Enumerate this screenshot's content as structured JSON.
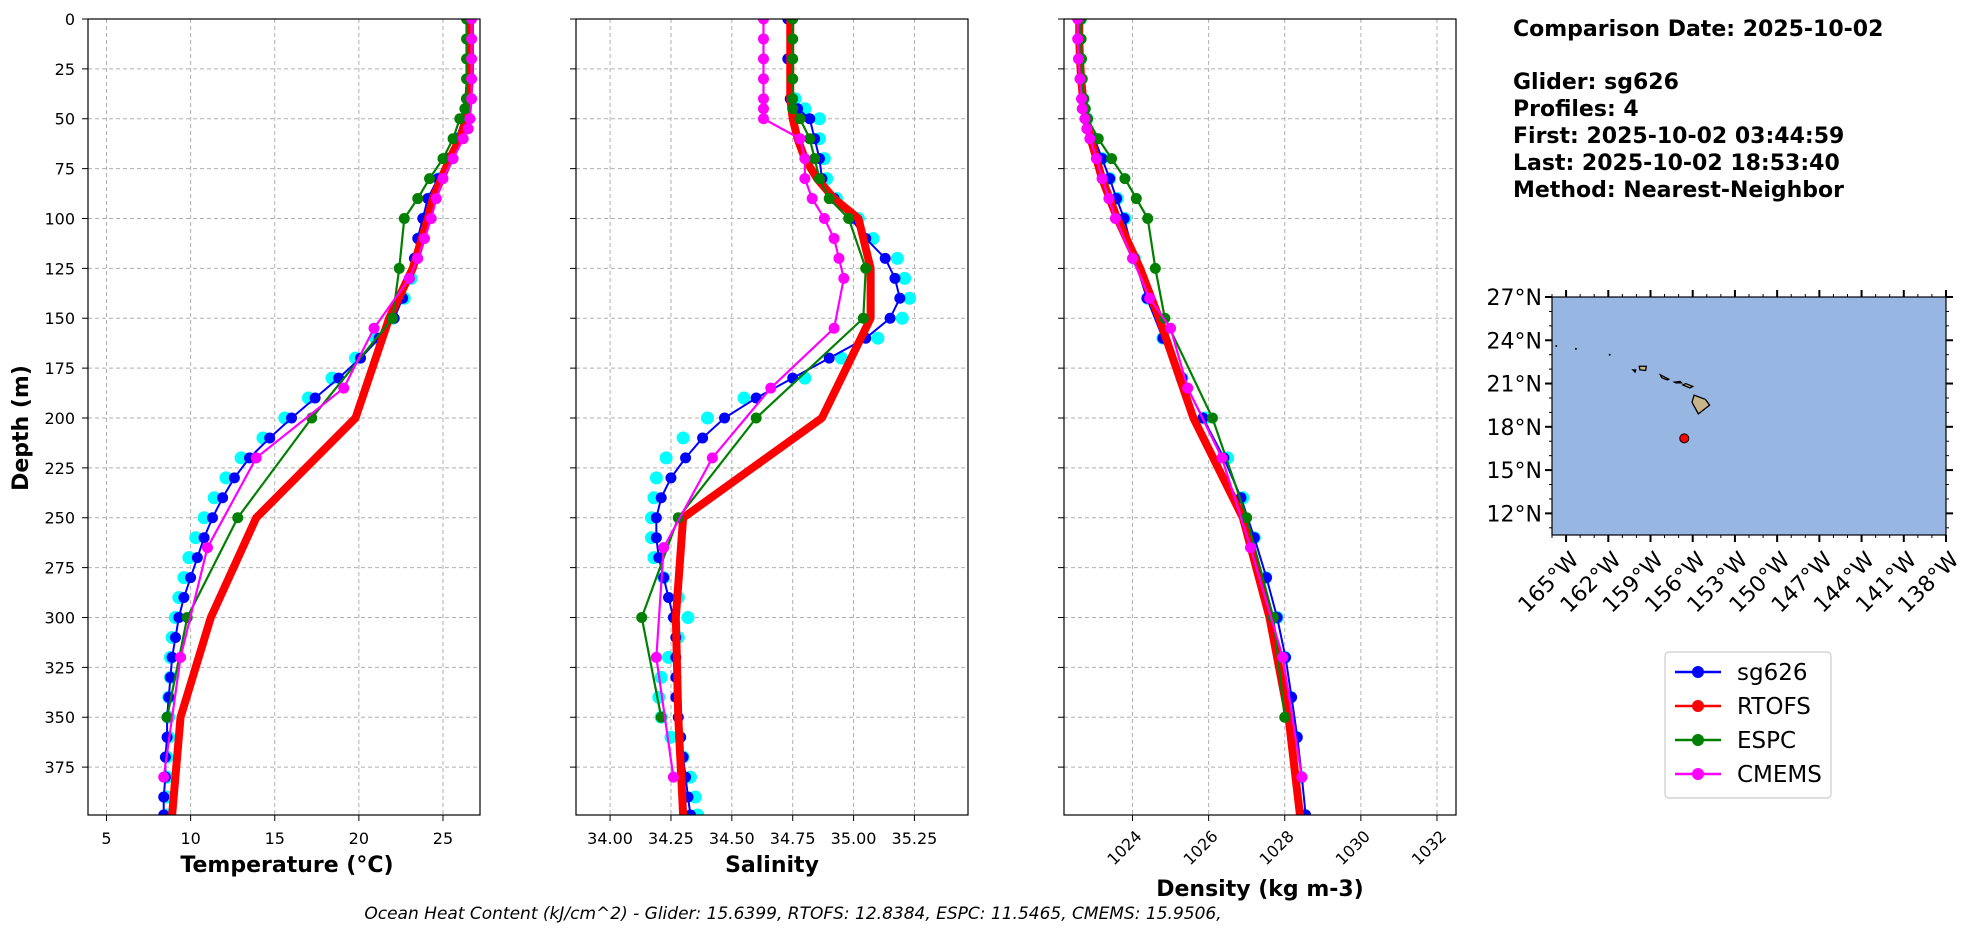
{
  "info": {
    "comparison_date": "Comparison Date: 2025-10-02",
    "glider": "Glider: sg626",
    "profiles": "Profiles: 4",
    "first": "First: 2025-10-02 03:44:59",
    "last": "Last: 2025-10-02 18:53:40",
    "method": "Method: Nearest-Neighbor"
  },
  "footer": "Ocean Heat Content (kJ/cm^2) - Glider: 15.6399,  RTOFS: 12.8384,  ESPC: 11.5465,  CMEMS: 15.9506,",
  "legend": [
    {
      "name": "sg626",
      "color": "#0000ff"
    },
    {
      "name": "RTOFS",
      "color": "#ff0000"
    },
    {
      "name": "ESPC",
      "color": "#008000"
    },
    {
      "name": "CMEMS",
      "color": "#ff00ff"
    }
  ],
  "map": {
    "lat_ticks": [
      "27°N",
      "24°N",
      "21°N",
      "18°N",
      "15°N",
      "12°N"
    ],
    "lat_values": [
      27,
      24,
      21,
      18,
      15,
      12
    ],
    "lon_ticks": [
      "165°W",
      "162°W",
      "159°W",
      "156°W",
      "153°W",
      "150°W",
      "147°W",
      "144°W",
      "141°W",
      "138°W"
    ],
    "lon_values": [
      -165,
      -162,
      -159,
      -156,
      -153,
      -150,
      -147,
      -144,
      -141,
      -138
    ],
    "lon_range": [
      -166,
      -138
    ],
    "lat_range": [
      10.5,
      27
    ],
    "ocean_color": "#97b6e1",
    "land_color": "#c8b48a",
    "glider_position": {
      "lon": -156.6,
      "lat": 17.2
    }
  },
  "chart_data": [
    {
      "type": "line",
      "xlabel": "Temperature (°C)",
      "ylabel": "Depth (m)",
      "xlim": [
        3.9,
        27.2
      ],
      "ylim": [
        399,
        0
      ],
      "x_ticks": [
        "5",
        "10",
        "15",
        "20",
        "25"
      ],
      "x_tick_values": [
        5,
        10,
        15,
        20,
        25
      ],
      "y_ticks": [
        "0",
        "25",
        "50",
        "75",
        "100",
        "125",
        "150",
        "175",
        "200",
        "225",
        "250",
        "275",
        "300",
        "325",
        "350",
        "375"
      ],
      "y_tick_values": [
        0,
        25,
        50,
        75,
        100,
        125,
        150,
        175,
        200,
        225,
        250,
        275,
        300,
        325,
        350,
        375
      ],
      "series": [
        {
          "name": "sg626-profiles",
          "color": "#00ffff",
          "depth": [
            0,
            10,
            20,
            30,
            40,
            50,
            60,
            70,
            80,
            90,
            100,
            110,
            120,
            130,
            140,
            150,
            160,
            170,
            180,
            190,
            200,
            210,
            220,
            230,
            240,
            250,
            260,
            270,
            280,
            290,
            300,
            310,
            320,
            330,
            340,
            350,
            360,
            370,
            380,
            390,
            399
          ],
          "values": [
            26.6,
            26.6,
            26.6,
            26.6,
            26.5,
            26.3,
            25.9,
            25.4,
            24.8,
            24.3,
            23.9,
            23.6,
            23.4,
            23.1,
            22.7,
            22.0,
            21.0,
            19.8,
            18.4,
            17.0,
            15.6,
            14.3,
            13.0,
            12.1,
            11.4,
            10.8,
            10.3,
            9.9,
            9.6,
            9.3,
            9.1,
            8.9,
            8.8,
            8.8,
            8.7,
            8.7,
            8.7,
            8.6,
            8.6,
            8.6,
            8.6
          ]
        },
        {
          "name": "sg626",
          "color": "#0000ff",
          "depth": [
            0,
            10,
            20,
            30,
            40,
            50,
            60,
            70,
            80,
            90,
            100,
            110,
            120,
            130,
            140,
            150,
            160,
            170,
            180,
            190,
            200,
            210,
            220,
            230,
            240,
            250,
            260,
            270,
            280,
            290,
            300,
            310,
            320,
            330,
            340,
            350,
            360,
            370,
            380,
            390,
            399
          ],
          "values": [
            26.5,
            26.5,
            26.5,
            26.5,
            26.4,
            26.2,
            25.8,
            25.3,
            24.7,
            24.1,
            23.8,
            23.5,
            23.3,
            23.0,
            22.6,
            22.1,
            21.2,
            20.1,
            18.8,
            17.4,
            16.0,
            14.7,
            13.5,
            12.6,
            11.9,
            11.3,
            10.8,
            10.4,
            10.0,
            9.6,
            9.3,
            9.1,
            8.9,
            8.8,
            8.7,
            8.6,
            8.6,
            8.5,
            8.5,
            8.4,
            8.4
          ]
        },
        {
          "name": "RTOFS",
          "color": "#ff0000",
          "depth": [
            0,
            10,
            20,
            30,
            40,
            50,
            60,
            70,
            80,
            90,
            100,
            125,
            150,
            200,
            250,
            300,
            350,
            399
          ],
          "values": [
            26.6,
            26.6,
            26.6,
            26.6,
            26.5,
            26.4,
            26.0,
            25.4,
            24.9,
            24.4,
            24.1,
            23.2,
            21.8,
            19.8,
            13.9,
            11.2,
            9.4,
            8.9
          ]
        },
        {
          "name": "ESPC",
          "color": "#008000",
          "depth": [
            0,
            10,
            20,
            30,
            40,
            45,
            50,
            60,
            70,
            80,
            90,
            100,
            125,
            150,
            200,
            250,
            300,
            350
          ],
          "values": [
            26.4,
            26.4,
            26.4,
            26.4,
            26.4,
            26.3,
            26.0,
            25.6,
            25.0,
            24.2,
            23.5,
            22.7,
            22.4,
            22.0,
            17.2,
            12.8,
            9.8,
            8.6
          ]
        },
        {
          "name": "CMEMS",
          "color": "#ff00ff",
          "depth": [
            0,
            10,
            20,
            30,
            40,
            50,
            55,
            60,
            70,
            80,
            90,
            100,
            110,
            120,
            130,
            155,
            185,
            220,
            265,
            320,
            380
          ],
          "values": [
            26.7,
            26.7,
            26.7,
            26.7,
            26.7,
            26.6,
            26.5,
            26.2,
            25.6,
            25.0,
            24.6,
            24.3,
            23.9,
            23.5,
            23.0,
            20.9,
            19.1,
            13.9,
            11.0,
            9.4,
            8.4
          ]
        }
      ]
    },
    {
      "type": "line",
      "xlabel": "Salinity",
      "ylabel": "",
      "xlim": [
        33.86,
        35.47
      ],
      "ylim": [
        399,
        0
      ],
      "x_ticks": [
        "34.00",
        "34.25",
        "34.50",
        "34.75",
        "35.00",
        "35.25"
      ],
      "x_tick_values": [
        34.0,
        34.25,
        34.5,
        34.75,
        35.0,
        35.25
      ],
      "series": [
        {
          "name": "sg626-profiles",
          "color": "#00ffff",
          "depth": [
            0,
            20,
            40,
            45,
            50,
            60,
            70,
            80,
            90,
            100,
            110,
            120,
            130,
            140,
            150,
            160,
            170,
            180,
            190,
            200,
            210,
            220,
            230,
            240,
            250,
            260,
            270,
            280,
            290,
            300,
            310,
            320,
            330,
            340,
            350,
            360,
            370,
            380,
            390,
            399
          ],
          "values": [
            34.74,
            34.74,
            34.76,
            34.8,
            34.86,
            34.86,
            34.88,
            34.89,
            34.93,
            35.02,
            35.08,
            35.18,
            35.21,
            35.23,
            35.2,
            35.1,
            34.95,
            34.8,
            34.55,
            34.4,
            34.3,
            34.23,
            34.19,
            34.18,
            34.17,
            34.17,
            34.18,
            34.22,
            34.28,
            34.32,
            34.28,
            34.24,
            34.21,
            34.2,
            34.21,
            34.25,
            34.3,
            34.33,
            34.35,
            34.36
          ]
        },
        {
          "name": "sg626",
          "color": "#0000ff",
          "depth": [
            0,
            20,
            40,
            45,
            50,
            60,
            70,
            80,
            90,
            100,
            110,
            120,
            130,
            140,
            150,
            160,
            170,
            180,
            190,
            200,
            210,
            220,
            230,
            240,
            250,
            260,
            270,
            280,
            290,
            300,
            310,
            320,
            330,
            340,
            350,
            360,
            370,
            380,
            390,
            399
          ],
          "values": [
            34.73,
            34.73,
            34.74,
            34.77,
            34.82,
            34.84,
            34.86,
            34.87,
            34.92,
            34.99,
            35.05,
            35.13,
            35.17,
            35.19,
            35.15,
            35.05,
            34.9,
            34.75,
            34.6,
            34.47,
            34.38,
            34.31,
            34.25,
            34.21,
            34.19,
            34.19,
            34.2,
            34.22,
            34.24,
            34.26,
            34.27,
            34.27,
            34.27,
            34.27,
            34.28,
            34.29,
            34.3,
            34.31,
            34.32,
            34.33
          ]
        },
        {
          "name": "RTOFS",
          "color": "#ff0000",
          "depth": [
            0,
            10,
            20,
            30,
            40,
            50,
            60,
            70,
            80,
            90,
            100,
            125,
            150,
            200,
            250,
            300,
            350,
            399
          ],
          "values": [
            34.74,
            34.74,
            34.74,
            34.74,
            34.74,
            34.75,
            34.77,
            34.8,
            34.85,
            34.92,
            35.02,
            35.07,
            35.07,
            34.87,
            34.3,
            34.27,
            34.28,
            34.3
          ]
        },
        {
          "name": "ESPC",
          "color": "#008000",
          "depth": [
            0,
            10,
            20,
            30,
            40,
            45,
            50,
            60,
            70,
            80,
            90,
            100,
            125,
            150,
            200,
            250,
            300,
            350
          ],
          "values": [
            34.75,
            34.75,
            34.75,
            34.75,
            34.75,
            34.75,
            34.78,
            34.82,
            34.84,
            34.86,
            34.9,
            34.98,
            35.05,
            35.04,
            34.6,
            34.28,
            34.13,
            34.21
          ]
        },
        {
          "name": "CMEMS",
          "color": "#ff00ff",
          "depth": [
            0,
            10,
            20,
            30,
            40,
            45,
            50,
            60,
            70,
            80,
            90,
            100,
            110,
            120,
            130,
            155,
            185,
            220,
            265,
            320,
            380
          ],
          "values": [
            34.63,
            34.63,
            34.63,
            34.63,
            34.63,
            34.63,
            34.63,
            34.78,
            34.8,
            34.8,
            34.83,
            34.88,
            34.92,
            34.94,
            34.96,
            34.92,
            34.66,
            34.42,
            34.22,
            34.19,
            34.26
          ]
        }
      ]
    },
    {
      "type": "line",
      "xlabel": "Density (kg m-3)",
      "ylabel": "",
      "xlim": [
        1022.2,
        1032.5
      ],
      "ylim": [
        399,
        0
      ],
      "x_ticks": [
        "1024",
        "1026",
        "1028",
        "1030",
        "1032"
      ],
      "x_tick_values": [
        1024,
        1026,
        1028,
        1030,
        1032
      ],
      "series": [
        {
          "name": "sg626-profiles",
          "color": "#00ffff",
          "depth": [
            0,
            20,
            40,
            50,
            60,
            70,
            80,
            90,
            100,
            120,
            140,
            160,
            180,
            200,
            220,
            240,
            260,
            280,
            300,
            320,
            340,
            360,
            380,
            399
          ],
          "values": [
            1022.63,
            1022.63,
            1022.7,
            1022.8,
            1023.0,
            1023.2,
            1023.4,
            1023.6,
            1023.8,
            1024.05,
            1024.4,
            1024.8,
            1025.3,
            1025.9,
            1026.5,
            1026.9,
            1027.2,
            1027.5,
            1027.8,
            1028.0,
            1028.15,
            1028.3,
            1028.42,
            1028.5
          ]
        },
        {
          "name": "sg626",
          "color": "#0000ff",
          "depth": [
            0,
            20,
            40,
            50,
            60,
            70,
            80,
            90,
            100,
            120,
            140,
            160,
            180,
            200,
            220,
            240,
            260,
            280,
            300,
            320,
            340,
            360,
            380,
            399
          ],
          "values": [
            1022.6,
            1022.6,
            1022.68,
            1022.8,
            1023.0,
            1023.2,
            1023.4,
            1023.58,
            1023.78,
            1024.05,
            1024.38,
            1024.8,
            1025.3,
            1025.85,
            1026.4,
            1026.85,
            1027.2,
            1027.52,
            1027.8,
            1028.02,
            1028.18,
            1028.33,
            1028.45,
            1028.55
          ]
        },
        {
          "name": "RTOFS",
          "color": "#ff0000",
          "depth": [
            0,
            10,
            20,
            30,
            40,
            50,
            60,
            70,
            80,
            90,
            100,
            125,
            150,
            200,
            250,
            300,
            350,
            399
          ],
          "values": [
            1022.6,
            1022.6,
            1022.62,
            1022.65,
            1022.7,
            1022.78,
            1022.9,
            1023.05,
            1023.2,
            1023.4,
            1023.6,
            1024.2,
            1024.7,
            1025.6,
            1026.9,
            1027.6,
            1028.1,
            1028.4
          ]
        },
        {
          "name": "ESPC",
          "color": "#008000",
          "depth": [
            0,
            10,
            20,
            30,
            40,
            45,
            50,
            60,
            70,
            80,
            90,
            100,
            125,
            150,
            200,
            250,
            300,
            350
          ],
          "values": [
            1022.65,
            1022.65,
            1022.66,
            1022.68,
            1022.72,
            1022.76,
            1022.82,
            1023.1,
            1023.45,
            1023.8,
            1024.1,
            1024.4,
            1024.6,
            1024.85,
            1026.1,
            1027.0,
            1027.7,
            1028.0
          ]
        },
        {
          "name": "CMEMS",
          "color": "#ff00ff",
          "depth": [
            0,
            10,
            20,
            30,
            40,
            45,
            50,
            55,
            60,
            70,
            80,
            90,
            100,
            120,
            140,
            155,
            185,
            220,
            265,
            320,
            380
          ],
          "values": [
            1022.56,
            1022.56,
            1022.58,
            1022.62,
            1022.66,
            1022.68,
            1022.75,
            1022.8,
            1022.88,
            1023.05,
            1023.2,
            1023.38,
            1023.55,
            1024.0,
            1024.45,
            1025.0,
            1025.45,
            1026.35,
            1027.1,
            1027.95,
            1028.45
          ]
        }
      ]
    }
  ]
}
